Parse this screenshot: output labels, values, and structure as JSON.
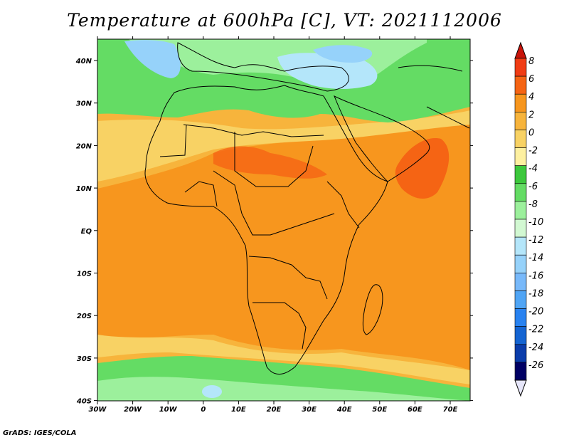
{
  "title": "Temperature at 600hPa [C], VT: 2021112006",
  "footer": "GrADS: IGES/COLA",
  "axes": {
    "lon_ticks": [
      "30W",
      "20W",
      "10W",
      "0",
      "10E",
      "20E",
      "30E",
      "40E",
      "50E",
      "60E",
      "70E"
    ],
    "lat_ticks": [
      "40N",
      "30N",
      "20N",
      "10N",
      "EQ",
      "10S",
      "20S",
      "30S",
      "40S"
    ]
  },
  "colorbar": {
    "labels": [
      "8",
      "6",
      "4",
      "2",
      "0",
      "-2",
      "-4",
      "-6",
      "-8",
      "-10",
      "-12",
      "-14",
      "-16",
      "-18",
      "-20",
      "-22",
      "-24",
      "-26"
    ],
    "colors": [
      "#f03c14",
      "#f56414",
      "#f7961e",
      "#f7b43c",
      "#f8d264",
      "#fdf0a0",
      "#3cc83c",
      "#64dc64",
      "#9cf09c",
      "#d2f8d2",
      "#b4e6fa",
      "#96d2fa",
      "#78b9fa",
      "#50a5f5",
      "#2882f0",
      "#1464d2",
      "#0a3caa",
      "#000064"
    ],
    "top_color": "#c8140a",
    "bottom_color": "#e6e6fa"
  },
  "colors": {
    "hot": "#f7961e",
    "warm": "#f7b43c",
    "mild": "#f8d264",
    "cool_green": "#64dc64",
    "cold_blue": "#96d2fa"
  }
}
